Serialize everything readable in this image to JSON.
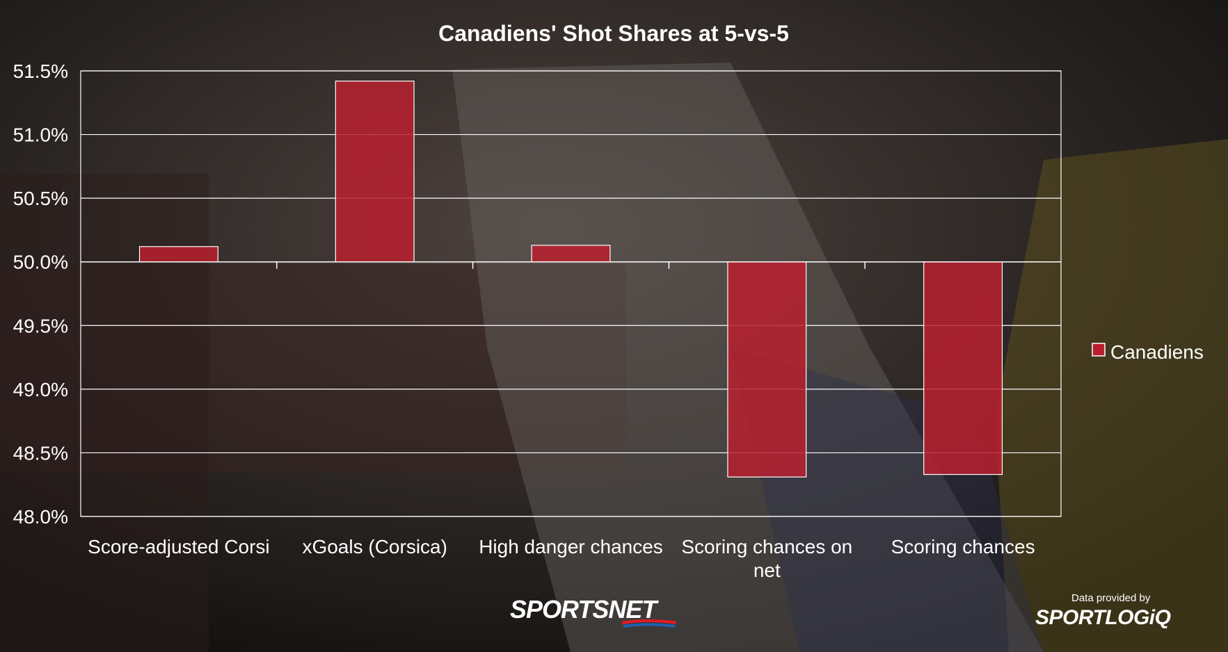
{
  "chart_data": {
    "type": "bar",
    "title": "Canadiens' Shot Shares at 5-vs-5",
    "categories": [
      "Score-adjusted Corsi",
      "xGoals (Corsica)",
      "High danger chances",
      "Scoring chances on net",
      "Scoring chances"
    ],
    "category_lines": [
      [
        "Score-adjusted Corsi"
      ],
      [
        "xGoals (Corsica)"
      ],
      [
        "High danger chances"
      ],
      [
        "Scoring chances on",
        "net"
      ],
      [
        "Scoring chances"
      ]
    ],
    "series": [
      {
        "name": "Canadiens",
        "values": [
          50.12,
          51.42,
          50.13,
          48.31,
          48.33
        ],
        "color": "#b8202f"
      }
    ],
    "baseline": 50.0,
    "ylim": [
      48.0,
      51.5
    ],
    "yticks": [
      "51.5%",
      "51.0%",
      "50.5%",
      "50.0%",
      "49.5%",
      "49.0%",
      "48.5%",
      "48.0%"
    ],
    "ytick_values": [
      51.5,
      51.0,
      50.5,
      50.0,
      49.5,
      49.0,
      48.5,
      48.0
    ],
    "grid": true,
    "legend_position": "right",
    "xlabel": "",
    "ylabel": ""
  },
  "branding": {
    "network": "SPORTSNET",
    "credit_line": "Data provided by",
    "data_partner": "SPORTLOGiQ"
  }
}
